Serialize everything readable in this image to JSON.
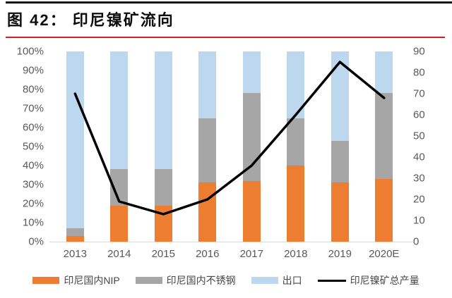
{
  "header": {
    "figure_title": "图 42： 印尼镍矿流向"
  },
  "colors": {
    "nip_orange": "#ED7D31",
    "stainless_gray": "#A6A6A6",
    "export_blue": "#BDD7EE",
    "line_black": "#000000",
    "title_underline_red": "#D42020",
    "axis_text_gray": "#595959"
  },
  "chart_data": {
    "type": "combo-stacked-bar-line",
    "title": "印尼镍矿流向",
    "categories": [
      "2013",
      "2014",
      "2015",
      "2016",
      "2017",
      "2018",
      "2019",
      "2020E"
    ],
    "bar_unit": "%",
    "series": [
      {
        "key": "nip",
        "name": "印尼国内NIP",
        "type": "bar",
        "axis": "left",
        "color": "#ED7D31",
        "values": [
          3,
          19,
          19,
          31,
          32,
          40,
          31,
          33
        ]
      },
      {
        "key": "stainless",
        "name": "印尼国内不锈钢",
        "type": "bar",
        "axis": "left",
        "color": "#A6A6A6",
        "values": [
          4,
          19,
          19,
          34,
          46,
          25,
          22,
          45
        ]
      },
      {
        "key": "export",
        "name": "出口",
        "type": "bar",
        "axis": "left",
        "color": "#BDD7EE",
        "values": [
          93,
          62,
          62,
          35,
          22,
          35,
          47,
          22
        ]
      },
      {
        "key": "total",
        "name": "印尼镍矿总产量",
        "type": "line",
        "axis": "right",
        "color": "#000000",
        "values": [
          70,
          19,
          13,
          20,
          36,
          60,
          85,
          68
        ]
      }
    ],
    "left_axis": {
      "min": 0,
      "max": 100,
      "tick_labels": [
        "0%",
        "10%",
        "20%",
        "30%",
        "40%",
        "50%",
        "60%",
        "70%",
        "80%",
        "90%",
        "100%"
      ]
    },
    "right_axis": {
      "min": 0,
      "max": 90,
      "tick_labels": [
        "0",
        "10",
        "20",
        "30",
        "40",
        "50",
        "60",
        "70",
        "80",
        "90"
      ]
    },
    "legend_position": "bottom",
    "grid": false
  }
}
